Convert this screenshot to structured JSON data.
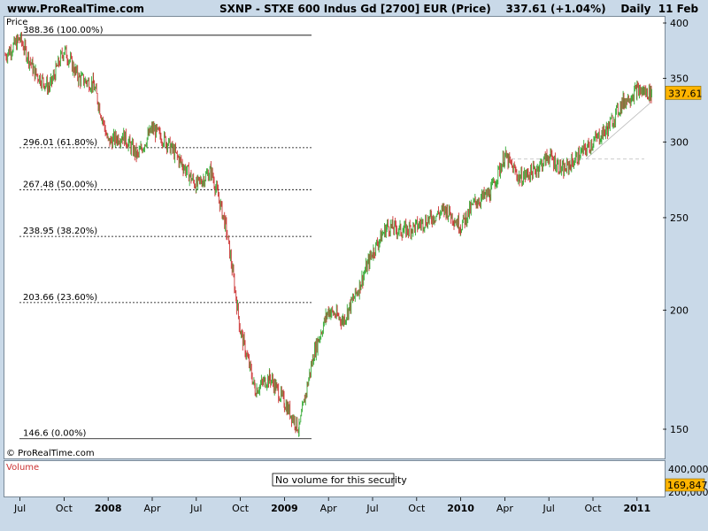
{
  "header": {
    "site": "www.ProRealTime.com",
    "title": "SXNP - STXE 600 Indus Gd [2700] EUR (Price)    337.61 (+1.04%)    Daily  11 Feb"
  },
  "price_panel": {
    "label": "Price",
    "credit": "© ProRealTime.com",
    "last_price_label": "337.61",
    "colors": {
      "up": "#33aa33",
      "down": "#cc3333",
      "last_price_bg": "#ffb400"
    }
  },
  "volume_panel": {
    "label": "Volume",
    "message": "No volume for this security",
    "tick": "400,000",
    "tick_partial": "200,000",
    "value_label": "169,847"
  },
  "chart_data": {
    "type": "line",
    "title": "SXNP - STXE 600 Indus Gd [2700] EUR (Price)",
    "x_ticks": [
      "Jul",
      "Oct",
      "2008",
      "Apr",
      "Jul",
      "Oct",
      "2009",
      "Apr",
      "Jul",
      "Oct",
      "2010",
      "Apr",
      "Jul",
      "Oct",
      "2011"
    ],
    "y_ticks": [
      400,
      350,
      300,
      250,
      200,
      150
    ],
    "ylim": [
      145,
      402
    ],
    "y_scale": "log",
    "grid": false,
    "series": [
      {
        "x": [
          "2007-06",
          "2007-07",
          "2007-08",
          "2007-09",
          "2007-10",
          "2007-11",
          "2007-12",
          "2008-01",
          "2008-02",
          "2008-03",
          "2008-04",
          "2008-05",
          "2008-06",
          "2008-07",
          "2008-08",
          "2008-09",
          "2008-10",
          "2008-11",
          "2008-12",
          "2009-01",
          "2009-02",
          "2009-03",
          "2009-04",
          "2009-05",
          "2009-06",
          "2009-07",
          "2009-08",
          "2009-09",
          "2009-10",
          "2009-11",
          "2009-12",
          "2010-01",
          "2010-02",
          "2010-03",
          "2010-04",
          "2010-05",
          "2010-06",
          "2010-07",
          "2010-08",
          "2010-09",
          "2010-10",
          "2010-11",
          "2010-12",
          "2011-01",
          "2011-02"
        ],
        "y": [
          370,
          385,
          355,
          342,
          375,
          350,
          345,
          300,
          305,
          290,
          310,
          300,
          285,
          270,
          280,
          245,
          190,
          165,
          170,
          160,
          150,
          180,
          200,
          195,
          210,
          230,
          245,
          242,
          245,
          250,
          255,
          245,
          260,
          265,
          290,
          275,
          280,
          290,
          280,
          290,
          300,
          310,
          330,
          340,
          337.61
        ]
      }
    ],
    "fibonacci_levels": [
      {
        "value": 388.36,
        "label": "388.36 (100.00%)"
      },
      {
        "value": 296.01,
        "label": "296.01 (61.80%)"
      },
      {
        "value": 267.48,
        "label": "267.48 (50.00%)"
      },
      {
        "value": 238.95,
        "label": "238.95 (38.20%)"
      },
      {
        "value": 203.66,
        "label": "203.66 (23.60%)"
      },
      {
        "value": 146.6,
        "label": "146.6 (0.00%)"
      }
    ],
    "last_value": 337.61
  }
}
